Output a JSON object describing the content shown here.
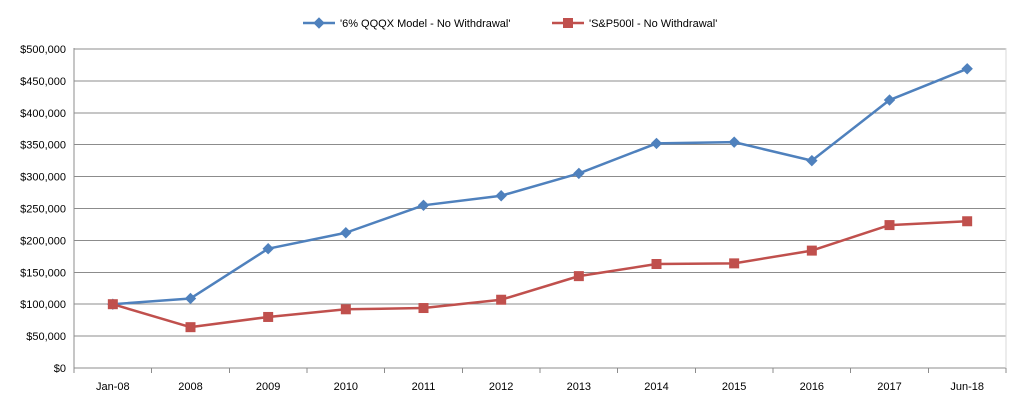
{
  "chart_data": {
    "type": "line",
    "categories": [
      "Jan-08",
      "2008",
      "2009",
      "2010",
      "2011",
      "2012",
      "2013",
      "2014",
      "2015",
      "2016",
      "2017",
      "Jun-18"
    ],
    "series": [
      {
        "name": "'6% QQQX Model - No Withdrawal'",
        "color": "#4F81BD",
        "marker": "diamond",
        "values": [
          100000,
          109000,
          187000,
          212000,
          255000,
          270000,
          305000,
          352000,
          354000,
          325000,
          420000,
          469000
        ]
      },
      {
        "name": "'S&P500l - No Withdrawal'",
        "color": "#C0504D",
        "marker": "square",
        "values": [
          100000,
          64000,
          80000,
          92000,
          94000,
          107000,
          144000,
          163000,
          164000,
          184000,
          224000,
          230000
        ]
      }
    ],
    "ylim": [
      0,
      500000
    ],
    "yticks": [
      0,
      50000,
      100000,
      150000,
      200000,
      250000,
      300000,
      350000,
      400000,
      450000,
      500000
    ],
    "ytick_labels": [
      "$0",
      "$50,000",
      "$100,000",
      "$150,000",
      "$200,000",
      "$250,000",
      "$300,000",
      "$350,000",
      "$400,000",
      "$450,000",
      "$500,000"
    ],
    "grid": true,
    "legend_position": "top"
  }
}
